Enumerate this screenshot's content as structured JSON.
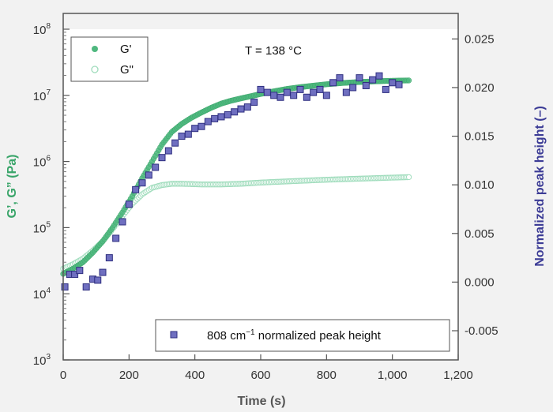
{
  "chart_data": {
    "type": "scatter",
    "annotation": "T = 138 °C",
    "x_axis": {
      "label": "Time (s)",
      "range": [
        0,
        1200
      ],
      "ticks": [
        0,
        200,
        400,
        600,
        800,
        1000,
        1200
      ],
      "tick_labels": [
        "0",
        "200",
        "400",
        "600",
        "800",
        "1,000",
        "1,200"
      ]
    },
    "y_left": {
      "label": "G’, G” (Pa)",
      "scale": "log",
      "range": [
        1000,
        100000000
      ],
      "ticks": [
        1000,
        10000,
        100000,
        1000000,
        10000000,
        100000000
      ],
      "tick_bases": [
        "10",
        "10",
        "10",
        "10",
        "10",
        "10"
      ],
      "tick_exps": [
        "3",
        "4",
        "5",
        "6",
        "7",
        "8"
      ]
    },
    "y_right": {
      "label": "Normalized peak height (–)",
      "scale": "linear",
      "range": [
        -0.008,
        0.026
      ],
      "ticks": [
        -0.005,
        0,
        0.005,
        0.01,
        0.015,
        0.02,
        0.025
      ],
      "tick_labels": [
        "-0.005",
        "0.000",
        "0.005",
        "0.010",
        "0.015",
        "0.020",
        "0.025"
      ]
    },
    "legend_top_left": [
      {
        "label": "G'",
        "marker": "filled-circle",
        "color": "#4fb87f"
      },
      {
        "label": "G\"",
        "marker": "open-circle",
        "color": "#9fdcbc"
      }
    ],
    "legend_bottom": {
      "prefix": "808 cm",
      "sup": "−1",
      "suffix": " normalized peak height",
      "marker": "square",
      "color": "#3c3c96"
    },
    "series": [
      {
        "name": "G'",
        "axis": "left",
        "marker": "filled-circle",
        "color": "#4fb87f",
        "x": [
          0,
          30,
          60,
          90,
          120,
          150,
          180,
          210,
          240,
          270,
          300,
          330,
          360,
          390,
          420,
          450,
          480,
          510,
          540,
          570,
          600,
          640,
          680,
          720,
          760,
          800,
          850,
          900,
          950,
          1000,
          1050
        ],
        "y": [
          20000,
          24000,
          30000,
          42000,
          62000,
          100000,
          170000,
          300000,
          560000,
          1000000,
          1800000,
          2800000,
          3700000,
          4600000,
          5500000,
          6500000,
          7500000,
          8300000,
          9000000,
          9700000,
          10500000,
          11500000,
          12500000,
          13300000,
          14000000,
          14700000,
          15400000,
          15900000,
          16300000,
          16600000,
          16800000
        ]
      },
      {
        "name": "G\"",
        "axis": "left",
        "marker": "open-circle",
        "color": "#9fdcbc",
        "x": [
          0,
          30,
          60,
          90,
          120,
          150,
          180,
          210,
          240,
          270,
          300,
          330,
          360,
          390,
          420,
          450,
          480,
          510,
          540,
          570,
          600,
          640,
          680,
          720,
          760,
          800,
          850,
          900,
          950,
          1000,
          1050
        ],
        "y": [
          24000,
          28000,
          34000,
          45000,
          62000,
          95000,
          150000,
          230000,
          320000,
          400000,
          440000,
          460000,
          460000,
          455000,
          450000,
          450000,
          450000,
          455000,
          460000,
          470000,
          480000,
          490000,
          500000,
          510000,
          520000,
          530000,
          540000,
          550000,
          560000,
          570000,
          580000
        ]
      },
      {
        "name": "808 cm-1 normalized peak height",
        "axis": "right",
        "marker": "square",
        "color": "#3c3c96",
        "x": [
          5,
          20,
          35,
          50,
          70,
          90,
          105,
          120,
          140,
          160,
          180,
          200,
          220,
          240,
          260,
          280,
          300,
          320,
          340,
          360,
          380,
          400,
          420,
          440,
          460,
          480,
          500,
          520,
          540,
          560,
          580,
          600,
          620,
          640,
          660,
          680,
          700,
          720,
          740,
          760,
          780,
          800,
          820,
          840,
          860,
          880,
          900,
          920,
          940,
          960,
          980,
          1000,
          1020
        ],
        "y": [
          -0.0005,
          0.0008,
          0.0008,
          0.0012,
          -0.0005,
          0.0003,
          0.0002,
          0.001,
          0.0025,
          0.0045,
          0.0062,
          0.008,
          0.0095,
          0.0102,
          0.011,
          0.0118,
          0.0128,
          0.0135,
          0.0143,
          0.015,
          0.0152,
          0.0158,
          0.016,
          0.0165,
          0.0168,
          0.017,
          0.0172,
          0.0175,
          0.0178,
          0.018,
          0.0185,
          0.0198,
          0.0195,
          0.0192,
          0.019,
          0.0195,
          0.0192,
          0.0198,
          0.019,
          0.0195,
          0.0198,
          0.0192,
          0.0205,
          0.021,
          0.0195,
          0.02,
          0.021,
          0.0202,
          0.0208,
          0.0212,
          0.0198,
          0.0205,
          0.0203
        ]
      }
    ]
  }
}
